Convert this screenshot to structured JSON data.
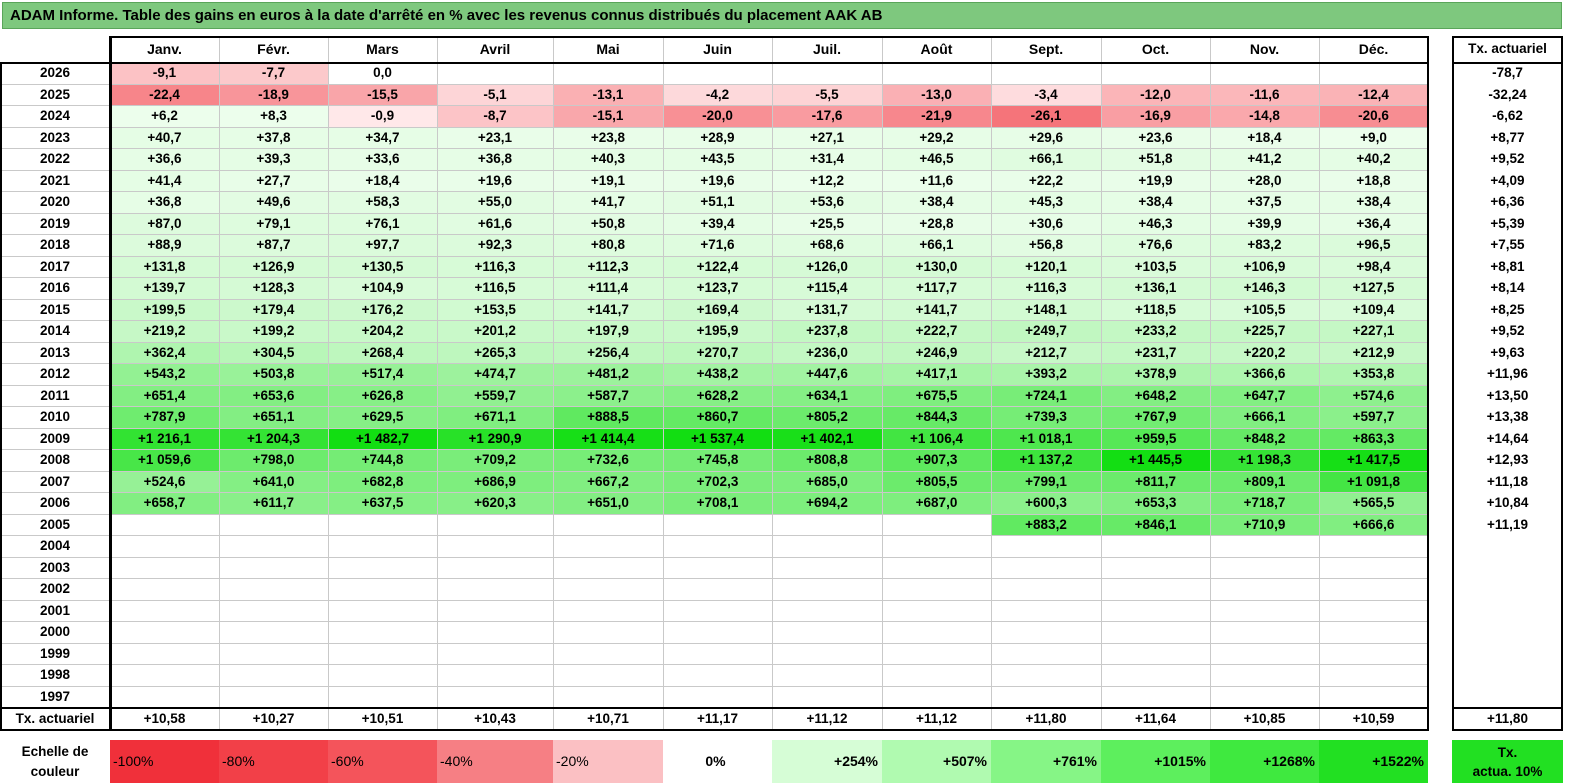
{
  "title": "ADAM Informe. Table des gains en euros à la date d'arrêté en % avec les revenus connus distribués du placement AAK AB",
  "months": [
    "Janv.",
    "Févr.",
    "Mars",
    "Avril",
    "Mai",
    "Juin",
    "Juil.",
    "Août",
    "Sept.",
    "Oct.",
    "Nov.",
    "Déc."
  ],
  "tx_header": "Tx. actuariel",
  "years": [
    "2026",
    "2025",
    "2024",
    "2023",
    "2022",
    "2021",
    "2020",
    "2019",
    "2018",
    "2017",
    "2016",
    "2015",
    "2014",
    "2013",
    "2012",
    "2011",
    "2010",
    "2009",
    "2008",
    "2007",
    "2006",
    "2005",
    "2004",
    "2003",
    "2002",
    "2001",
    "2000",
    "1999",
    "1998",
    "1997"
  ],
  "values": [
    [
      "-9,1",
      "-7,7",
      "0,0",
      "",
      "",
      "",
      "",
      "",
      "",
      "",
      "",
      ""
    ],
    [
      "-22,4",
      "-18,9",
      "-15,5",
      "-5,1",
      "-13,1",
      "-4,2",
      "-5,5",
      "-13,0",
      "-3,4",
      "-12,0",
      "-11,6",
      "-12,4"
    ],
    [
      "+6,2",
      "+8,3",
      "-0,9",
      "-8,7",
      "-15,1",
      "-20,0",
      "-17,6",
      "-21,9",
      "-26,1",
      "-16,9",
      "-14,8",
      "-20,6"
    ],
    [
      "+40,7",
      "+37,8",
      "+34,7",
      "+23,1",
      "+23,8",
      "+28,9",
      "+27,1",
      "+29,2",
      "+29,6",
      "+23,6",
      "+18,4",
      "+9,0"
    ],
    [
      "+36,6",
      "+39,3",
      "+33,6",
      "+36,8",
      "+40,3",
      "+43,5",
      "+31,4",
      "+46,5",
      "+66,1",
      "+51,8",
      "+41,2",
      "+40,2"
    ],
    [
      "+41,4",
      "+27,7",
      "+18,4",
      "+19,6",
      "+19,1",
      "+19,6",
      "+12,2",
      "+11,6",
      "+22,2",
      "+19,9",
      "+28,0",
      "+18,8"
    ],
    [
      "+36,8",
      "+49,6",
      "+58,3",
      "+55,0",
      "+41,7",
      "+51,1",
      "+53,6",
      "+38,4",
      "+45,3",
      "+38,4",
      "+37,5",
      "+38,4"
    ],
    [
      "+87,0",
      "+79,1",
      "+76,1",
      "+61,6",
      "+50,8",
      "+39,4",
      "+25,5",
      "+28,8",
      "+30,6",
      "+46,3",
      "+39,9",
      "+36,4"
    ],
    [
      "+88,9",
      "+87,7",
      "+97,7",
      "+92,3",
      "+80,8",
      "+71,6",
      "+68,6",
      "+66,1",
      "+56,8",
      "+76,6",
      "+83,2",
      "+96,5"
    ],
    [
      "+131,8",
      "+126,9",
      "+130,5",
      "+116,3",
      "+112,3",
      "+122,4",
      "+126,0",
      "+130,0",
      "+120,1",
      "+103,5",
      "+106,9",
      "+98,4"
    ],
    [
      "+139,7",
      "+128,3",
      "+104,9",
      "+116,5",
      "+111,4",
      "+123,7",
      "+115,4",
      "+117,7",
      "+116,3",
      "+136,1",
      "+146,3",
      "+127,5"
    ],
    [
      "+199,5",
      "+179,4",
      "+176,2",
      "+153,5",
      "+141,7",
      "+169,4",
      "+131,7",
      "+141,7",
      "+148,1",
      "+118,5",
      "+105,5",
      "+109,4"
    ],
    [
      "+219,2",
      "+199,2",
      "+204,2",
      "+201,2",
      "+197,9",
      "+195,9",
      "+237,8",
      "+222,7",
      "+249,7",
      "+233,2",
      "+225,7",
      "+227,1"
    ],
    [
      "+362,4",
      "+304,5",
      "+268,4",
      "+265,3",
      "+256,4",
      "+270,7",
      "+236,0",
      "+246,9",
      "+212,7",
      "+231,7",
      "+220,2",
      "+212,9"
    ],
    [
      "+543,2",
      "+503,8",
      "+517,4",
      "+474,7",
      "+481,2",
      "+438,2",
      "+447,6",
      "+417,1",
      "+393,2",
      "+378,9",
      "+366,6",
      "+353,8"
    ],
    [
      "+651,4",
      "+653,6",
      "+626,8",
      "+559,7",
      "+587,7",
      "+628,2",
      "+634,1",
      "+675,5",
      "+724,1",
      "+648,2",
      "+647,7",
      "+574,6"
    ],
    [
      "+787,9",
      "+651,1",
      "+629,5",
      "+671,1",
      "+888,5",
      "+860,7",
      "+805,2",
      "+844,3",
      "+739,3",
      "+767,9",
      "+666,1",
      "+597,7"
    ],
    [
      "+1 216,1",
      "+1 204,3",
      "+1 482,7",
      "+1 290,9",
      "+1 414,4",
      "+1 537,4",
      "+1 402,1",
      "+1 106,4",
      "+1 018,1",
      "+959,5",
      "+848,2",
      "+863,3"
    ],
    [
      "+1 059,6",
      "+798,0",
      "+744,8",
      "+709,2",
      "+732,6",
      "+745,8",
      "+808,8",
      "+907,3",
      "+1 137,2",
      "+1 445,5",
      "+1 198,3",
      "+1 417,5"
    ],
    [
      "+524,6",
      "+641,0",
      "+682,8",
      "+686,9",
      "+667,2",
      "+702,3",
      "+685,0",
      "+805,5",
      "+799,1",
      "+811,7",
      "+809,1",
      "+1 091,8"
    ],
    [
      "+658,7",
      "+611,7",
      "+637,5",
      "+620,3",
      "+651,0",
      "+708,1",
      "+694,2",
      "+687,0",
      "+600,3",
      "+653,3",
      "+718,7",
      "+565,5"
    ],
    [
      "",
      "",
      "",
      "",
      "",
      "",
      "",
      "",
      "+883,2",
      "+846,1",
      "+710,9",
      "+666,6"
    ],
    [
      "",
      "",
      "",
      "",
      "",
      "",
      "",
      "",
      "",
      "",
      "",
      ""
    ],
    [
      "",
      "",
      "",
      "",
      "",
      "",
      "",
      "",
      "",
      "",
      "",
      ""
    ],
    [
      "",
      "",
      "",
      "",
      "",
      "",
      "",
      "",
      "",
      "",
      "",
      ""
    ],
    [
      "",
      "",
      "",
      "",
      "",
      "",
      "",
      "",
      "",
      "",
      "",
      ""
    ],
    [
      "",
      "",
      "",
      "",
      "",
      "",
      "",
      "",
      "",
      "",
      "",
      ""
    ],
    [
      "",
      "",
      "",
      "",
      "",
      "",
      "",
      "",
      "",
      "",
      "",
      ""
    ],
    [
      "",
      "",
      "",
      "",
      "",
      "",
      "",
      "",
      "",
      "",
      "",
      ""
    ],
    [
      "",
      "",
      "",
      "",
      "",
      "",
      "",
      "",
      "",
      "",
      "",
      ""
    ]
  ],
  "tx_values": [
    "-78,7",
    "-32,24",
    "-6,62",
    "+8,77",
    "+9,52",
    "+4,09",
    "+6,36",
    "+5,39",
    "+7,55",
    "+8,81",
    "+8,14",
    "+8,25",
    "+9,52",
    "+9,63",
    "+11,96",
    "+13,50",
    "+13,38",
    "+14,64",
    "+12,93",
    "+11,18",
    "+10,84",
    "+11,19",
    "",
    "",
    "",
    "",
    "",
    "",
    "",
    ""
  ],
  "footer": {
    "label": "Tx. actuariel",
    "values": [
      "+10,58",
      "+10,27",
      "+10,51",
      "+10,43",
      "+10,71",
      "+11,17",
      "+11,12",
      "+11,12",
      "+11,80",
      "+11,64",
      "+10,85",
      "+10,59"
    ],
    "tx": "+11,80"
  },
  "legend": {
    "label_line1": "Echelle de",
    "label_line2": "couleur",
    "steps": [
      {
        "text": "-100%",
        "color": "#f0303a"
      },
      {
        "text": "-80%",
        "color": "#f24048"
      },
      {
        "text": "-60%",
        "color": "#f4545b"
      },
      {
        "text": "-40%",
        "color": "#f67f84"
      },
      {
        "text": "-20%",
        "color": "#fbc0c3"
      },
      {
        "text": "0%",
        "color": "#ffffff"
      },
      {
        "text": "+254%",
        "color": "#d6fdd6"
      },
      {
        "text": "+507%",
        "color": "#b0fab0"
      },
      {
        "text": "+761%",
        "color": "#86f586"
      },
      {
        "text": "+1015%",
        "color": "#5def5d"
      },
      {
        "text": "+1268%",
        "color": "#3fe93f"
      },
      {
        "text": "+1522%",
        "color": "#22e022"
      }
    ],
    "tx_line1": "Tx.",
    "tx_line2": "actua. 10%",
    "tx_color": "#22e022"
  },
  "colors": {
    "title_bg": "#7ec87e"
  }
}
